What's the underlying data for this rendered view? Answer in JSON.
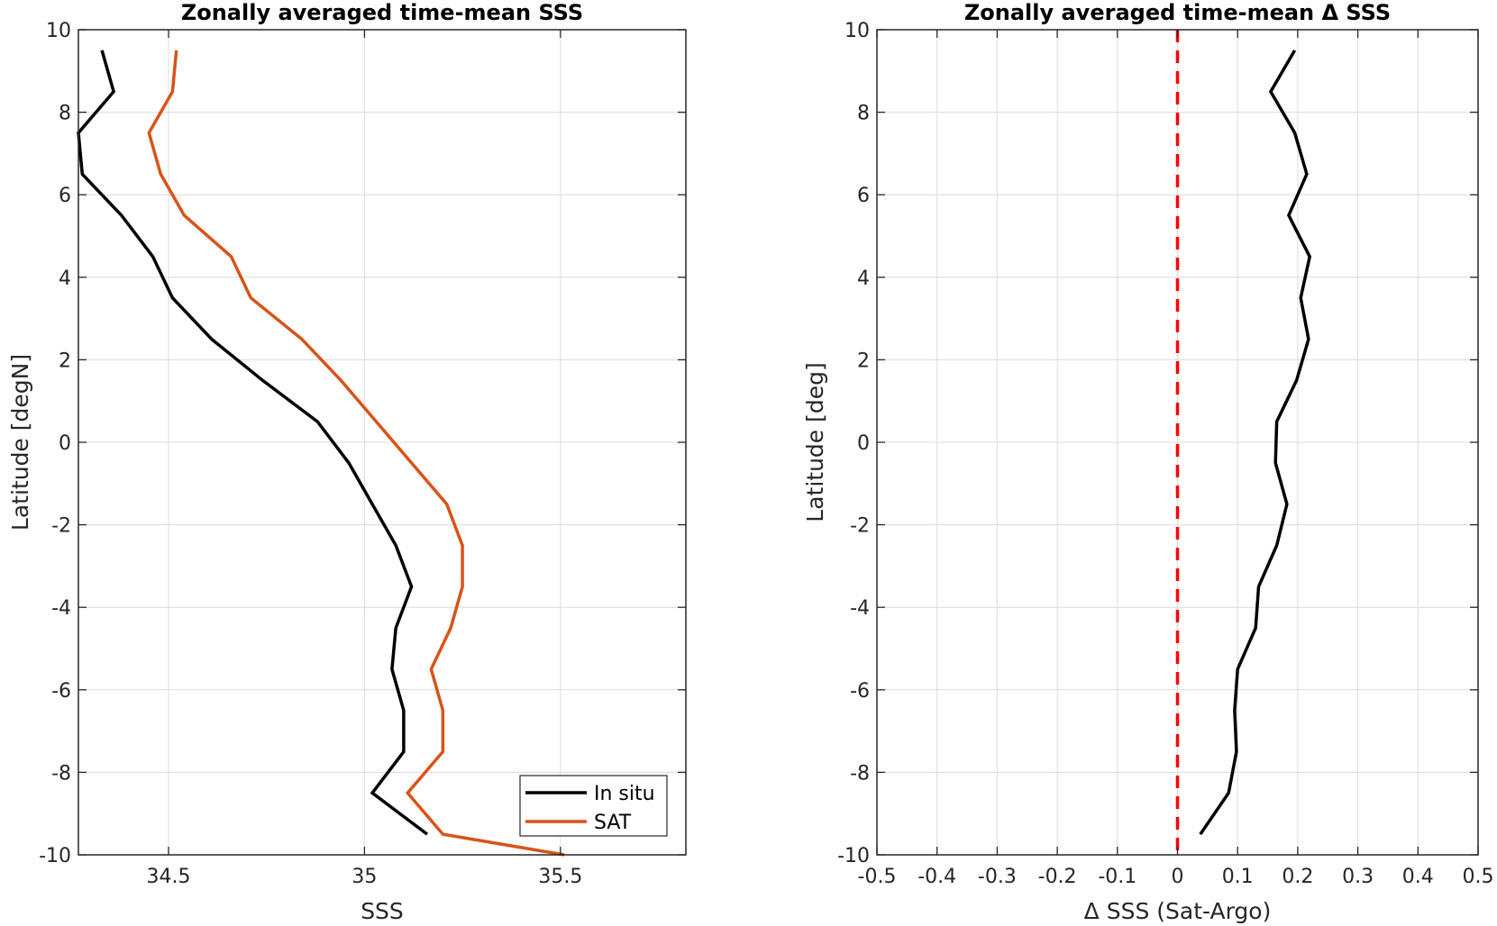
{
  "chart_data": [
    {
      "type": "line",
      "title": "Zonally averaged time-mean SSS",
      "xlabel": "SSS",
      "ylabel": "Latitude [degN]",
      "xlim": [
        34.27,
        35.82
      ],
      "ylim": [
        -10,
        10
      ],
      "xticks": [
        34.5,
        35,
        35.5
      ],
      "xtick_labels": [
        "34.5",
        "35",
        "35.5"
      ],
      "yticks": [
        10,
        8,
        6,
        4,
        2,
        0,
        -2,
        -4,
        -6,
        -8,
        -10
      ],
      "ytick_labels": [
        "10",
        "8",
        "6",
        "4",
        "2",
        "0",
        "-2",
        "-4",
        "-6",
        "-8",
        "-10"
      ],
      "grid": true,
      "legend": "bottom-right",
      "y": [
        9.5,
        8.5,
        7.5,
        6.5,
        5.5,
        4.5,
        3.5,
        2.5,
        1.5,
        0.5,
        -0.5,
        -1.5,
        -2.5,
        -3.5,
        -4.5,
        -5.5,
        -6.5,
        -7.5,
        -8.5,
        -9.5,
        -10
      ],
      "series": [
        {
          "name": "In situ",
          "color": "#000000",
          "x": [
            34.33,
            34.36,
            34.27,
            34.28,
            34.38,
            34.46,
            34.51,
            34.61,
            34.74,
            34.88,
            34.96,
            35.02,
            35.08,
            35.12,
            35.08,
            35.07,
            35.1,
            35.1,
            35.02,
            35.16,
            null
          ]
        },
        {
          "name": "SAT",
          "color": "#D95319",
          "x": [
            34.52,
            34.51,
            34.45,
            34.48,
            34.54,
            34.66,
            34.71,
            34.84,
            34.94,
            35.03,
            35.12,
            35.21,
            35.25,
            35.25,
            35.22,
            35.17,
            35.2,
            35.2,
            35.11,
            35.2,
            35.51
          ]
        }
      ]
    },
    {
      "type": "line",
      "title": "Zonally averaged time-mean Δ SSS",
      "xlabel": "Δ SSS (Sat-Argo)",
      "ylabel": "Latitude [deg]",
      "xlim": [
        -0.5,
        0.5
      ],
      "ylim": [
        -10,
        10
      ],
      "xticks": [
        -0.5,
        -0.4,
        -0.3,
        -0.2,
        -0.1,
        0,
        0.1,
        0.2,
        0.3,
        0.4,
        0.5
      ],
      "xtick_labels": [
        "-0.5",
        "-0.4",
        "-0.3",
        "-0.2",
        "-0.1",
        "0",
        "0.1",
        "0.2",
        "0.3",
        "0.4",
        "0.5"
      ],
      "yticks": [
        10,
        8,
        6,
        4,
        2,
        0,
        -2,
        -4,
        -6,
        -8,
        -10
      ],
      "ytick_labels": [
        "10",
        "8",
        "6",
        "4",
        "2",
        "0",
        "-2",
        "-4",
        "-6",
        "-8",
        "-10"
      ],
      "grid": true,
      "reference_line": {
        "x": 0,
        "color": "#FF0000",
        "style": "dashed"
      },
      "y": [
        9.5,
        8.5,
        7.5,
        6.5,
        5.5,
        4.5,
        3.5,
        2.5,
        1.5,
        0.5,
        -0.5,
        -1.5,
        -2.5,
        -3.5,
        -4.5,
        -5.5,
        -6.5,
        -7.5,
        -8.5,
        -9.5
      ],
      "series": [
        {
          "color": "#000000",
          "x": [
            0.195,
            0.155,
            0.195,
            0.215,
            0.185,
            0.22,
            0.205,
            0.218,
            0.198,
            0.165,
            0.163,
            0.182,
            0.165,
            0.135,
            0.13,
            0.1,
            0.095,
            0.098,
            0.085,
            0.038
          ]
        }
      ]
    }
  ]
}
